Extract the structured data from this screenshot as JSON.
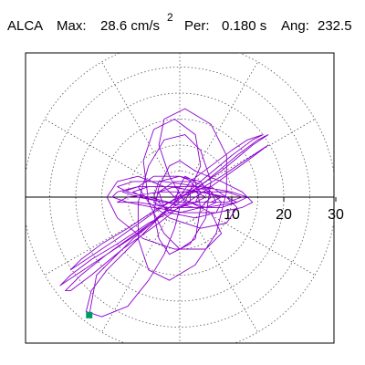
{
  "header": {
    "station": "ALCA",
    "max_label": "Max:",
    "max_value": "28.6 cm/s",
    "max_exponent": "2",
    "period_label": "Per:",
    "period_value": "0.180 s",
    "angle_label": "Ang:",
    "angle_value": "232.5"
  },
  "chart_data": {
    "type": "polar-hodogram",
    "radial_ticks": [
      10,
      20,
      30
    ],
    "rmax": 30,
    "grid": true,
    "spoke_angle_step_deg": 30,
    "trace_color": "#8b00cc",
    "marker_color": "#009966",
    "peak": {
      "magnitude": 28.6,
      "angle_deg": 232.5
    },
    "trace": [
      [
        0,
        0
      ],
      [
        3,
        1
      ],
      [
        8,
        4
      ],
      [
        14,
        8
      ],
      [
        17,
        10
      ],
      [
        13,
        7
      ],
      [
        6,
        2
      ],
      [
        0,
        -2
      ],
      [
        -6,
        -5
      ],
      [
        -12,
        -9
      ],
      [
        -17,
        -12
      ],
      [
        -21,
        -15
      ],
      [
        -23,
        -17
      ],
      [
        -20,
        -15
      ],
      [
        -14,
        -11
      ],
      [
        -7,
        -6
      ],
      [
        0,
        -1
      ],
      [
        5,
        3
      ],
      [
        11,
        8
      ],
      [
        15,
        11
      ],
      [
        17,
        12
      ],
      [
        14,
        10
      ],
      [
        8,
        5
      ],
      [
        2,
        1
      ],
      [
        -4,
        -2
      ],
      [
        -10,
        -6
      ],
      [
        -15,
        -9
      ],
      [
        -19,
        -12
      ],
      [
        -21,
        -14
      ],
      [
        -18,
        -12
      ],
      [
        -12,
        -8
      ],
      [
        -5,
        -3
      ],
      [
        1,
        1
      ],
      [
        6,
        2
      ],
      [
        9,
        0
      ],
      [
        11,
        -2
      ],
      [
        9,
        -5
      ],
      [
        4,
        -6
      ],
      [
        -2,
        -4
      ],
      [
        -6,
        -1
      ],
      [
        -8,
        2
      ],
      [
        -5,
        4
      ],
      [
        0,
        4
      ],
      [
        5,
        2
      ],
      [
        8,
        -1
      ],
      [
        7,
        -3
      ],
      [
        3,
        -4
      ],
      [
        -2,
        -3
      ],
      [
        -5,
        0
      ],
      [
        -4,
        3
      ],
      [
        0,
        4
      ],
      [
        4,
        3
      ],
      [
        6,
        0
      ],
      [
        4,
        -2
      ],
      [
        0,
        -3
      ],
      [
        -3,
        -2
      ],
      [
        -4,
        1
      ],
      [
        -1,
        3
      ],
      [
        2,
        3
      ],
      [
        4,
        1
      ],
      [
        3,
        -1
      ],
      [
        0,
        -2
      ],
      [
        -2,
        -1
      ],
      [
        -6,
        0
      ],
      [
        -10,
        1
      ],
      [
        -12,
        2
      ],
      [
        -9,
        3
      ],
      [
        -3,
        3
      ],
      [
        4,
        2
      ],
      [
        10,
        1
      ],
      [
        13,
        0
      ],
      [
        11,
        -1
      ],
      [
        5,
        -2
      ],
      [
        -2,
        -2
      ],
      [
        -8,
        -1
      ],
      [
        -12,
        -1
      ],
      [
        -10,
        0
      ],
      [
        -4,
        1
      ],
      [
        3,
        1
      ],
      [
        9,
        1
      ],
      [
        12,
        0
      ],
      [
        9,
        -1
      ],
      [
        3,
        -1
      ],
      [
        -3,
        -1
      ],
      [
        -8,
        0
      ],
      [
        -11,
        1
      ],
      [
        -8,
        2
      ],
      [
        -2,
        2
      ],
      [
        4,
        1
      ],
      [
        8,
        0
      ],
      [
        6,
        -1
      ],
      [
        1,
        -1
      ],
      [
        -2,
        4
      ],
      [
        -4,
        10
      ],
      [
        -3,
        15
      ],
      [
        1,
        17
      ],
      [
        6,
        14
      ],
      [
        9,
        8
      ],
      [
        9,
        1
      ],
      [
        7,
        -7
      ],
      [
        3,
        -13
      ],
      [
        -2,
        -16
      ],
      [
        -6,
        -14
      ],
      [
        -8,
        -8
      ],
      [
        -8,
        -1
      ],
      [
        -6,
        6
      ],
      [
        -3,
        11
      ],
      [
        1,
        12
      ],
      [
        4,
        9
      ],
      [
        6,
        3
      ],
      [
        5,
        -4
      ],
      [
        2,
        -9
      ],
      [
        -2,
        -11
      ],
      [
        -4,
        -8
      ],
      [
        -5,
        -3
      ],
      [
        -4,
        2
      ],
      [
        -2,
        6
      ],
      [
        0,
        7
      ],
      [
        3,
        5
      ],
      [
        8,
        3
      ],
      [
        12,
        1
      ],
      [
        14,
        -1
      ],
      [
        12,
        -2
      ],
      [
        7,
        -3
      ],
      [
        1,
        -3
      ],
      [
        -5,
        -2
      ],
      [
        -10,
        -1
      ],
      [
        -13,
        0
      ],
      [
        -12,
        1
      ],
      [
        -8,
        2
      ],
      [
        -2,
        2
      ],
      [
        4,
        1
      ],
      [
        9,
        0
      ],
      [
        11,
        -1
      ],
      [
        8,
        -2
      ],
      [
        3,
        -2
      ],
      [
        -3,
        -1
      ],
      [
        -7,
        0
      ],
      [
        -9,
        1
      ],
      [
        -6,
        2
      ],
      [
        -1,
        2
      ],
      [
        3,
        1
      ],
      [
        5,
        0
      ],
      [
        3,
        -1
      ],
      [
        0,
        -1
      ],
      [
        -3,
        2
      ],
      [
        -8,
        4
      ],
      [
        -12,
        3
      ],
      [
        -14,
        0
      ],
      [
        -12,
        -4
      ],
      [
        -7,
        -8
      ],
      [
        -1,
        -10
      ],
      [
        5,
        -10
      ],
      [
        8,
        -7
      ],
      [
        6,
        -3
      ],
      [
        0,
        0
      ],
      [
        2,
        3
      ],
      [
        6,
        6
      ],
      [
        10,
        9
      ],
      [
        13,
        11
      ],
      [
        16,
        12
      ],
      [
        14,
        11
      ],
      [
        10,
        8
      ],
      [
        4,
        3
      ],
      [
        -2,
        -2
      ],
      [
        -8,
        -7
      ],
      [
        -14,
        -11
      ],
      [
        -19,
        -15
      ],
      [
        -22,
        -18
      ],
      [
        -21,
        -18
      ],
      [
        -17,
        -15
      ],
      [
        -11,
        -10
      ],
      [
        -4,
        -5
      ],
      [
        1,
        -1
      ],
      [
        4,
        6
      ],
      [
        3,
        12
      ],
      [
        -1,
        15
      ],
      [
        -5,
        13
      ],
      [
        -7,
        7
      ],
      [
        -6,
        -1
      ],
      [
        -3,
        -7
      ],
      [
        0,
        -10
      ],
      [
        3,
        -8
      ],
      [
        4,
        -2
      ],
      [
        3,
        3
      ],
      [
        1,
        4
      ],
      [
        0,
        2
      ],
      [
        -1,
        -1
      ],
      [
        -3,
        -3
      ],
      [
        -6,
        -6
      ],
      [
        -10,
        -10
      ],
      [
        -14,
        -14
      ],
      [
        -17,
        -18
      ],
      [
        -18,
        -22
      ],
      [
        -15,
        -23
      ],
      [
        -10,
        -21
      ],
      [
        -6,
        -16
      ],
      [
        -3,
        -11
      ],
      [
        -1,
        -6
      ],
      [
        0,
        -2
      ],
      [
        2,
        -1
      ],
      [
        5,
        -2
      ],
      [
        7,
        -1
      ],
      [
        6,
        1
      ],
      [
        3,
        2
      ],
      [
        -1,
        2
      ],
      [
        -4,
        1
      ],
      [
        -5,
        -1
      ],
      [
        -3,
        -2
      ],
      [
        0,
        -2
      ],
      [
        2,
        -1
      ],
      [
        2,
        1
      ],
      [
        0,
        1
      ],
      [
        -1,
        0
      ],
      [
        0,
        0
      ],
      [
        -4,
        -4
      ],
      [
        -9,
        -8
      ],
      [
        -13,
        -12
      ],
      [
        -16,
        -15
      ],
      [
        -17.4,
        -22.7
      ]
    ]
  }
}
